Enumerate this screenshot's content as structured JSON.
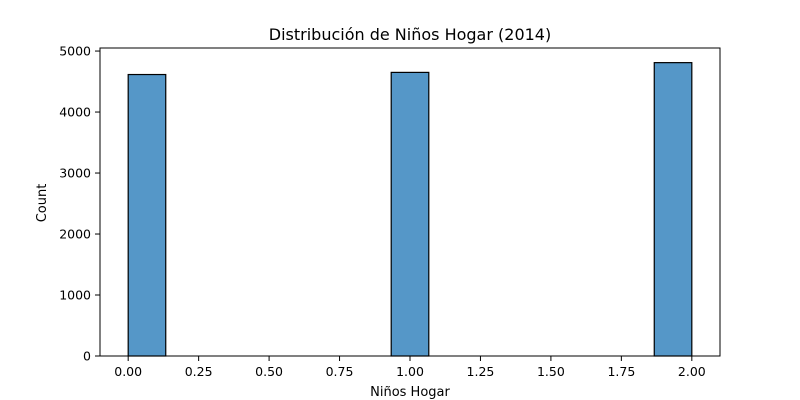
{
  "chart_data": {
    "type": "bar",
    "title": "Distribución de Niños Hogar (2014)",
    "xlabel": "Niños Hogar",
    "ylabel": "Count",
    "xlim": [
      -0.1,
      2.1
    ],
    "ylim": [
      0,
      5050
    ],
    "bin_width": 0.1333,
    "bars": [
      {
        "x_start": 0.0,
        "x_end": 0.1333,
        "count": 4615
      },
      {
        "x_start": 0.9333,
        "x_end": 1.0667,
        "count": 4650
      },
      {
        "x_start": 1.8667,
        "x_end": 2.0,
        "count": 4810
      }
    ],
    "x_ticks": [
      {
        "value": 0.0,
        "label": "0.00"
      },
      {
        "value": 0.25,
        "label": "0.25"
      },
      {
        "value": 0.5,
        "label": "0.50"
      },
      {
        "value": 0.75,
        "label": "0.75"
      },
      {
        "value": 1.0,
        "label": "1.00"
      },
      {
        "value": 1.25,
        "label": "1.25"
      },
      {
        "value": 1.5,
        "label": "1.50"
      },
      {
        "value": 1.75,
        "label": "1.75"
      },
      {
        "value": 2.0,
        "label": "2.00"
      }
    ],
    "y_ticks": [
      {
        "value": 0,
        "label": "0"
      },
      {
        "value": 1000,
        "label": "1000"
      },
      {
        "value": 2000,
        "label": "2000"
      },
      {
        "value": 3000,
        "label": "3000"
      },
      {
        "value": 4000,
        "label": "4000"
      },
      {
        "value": 5000,
        "label": "5000"
      }
    ],
    "grid": false,
    "colors": {
      "bar_fill": "#5597c8",
      "bar_edge": "#000000"
    }
  }
}
